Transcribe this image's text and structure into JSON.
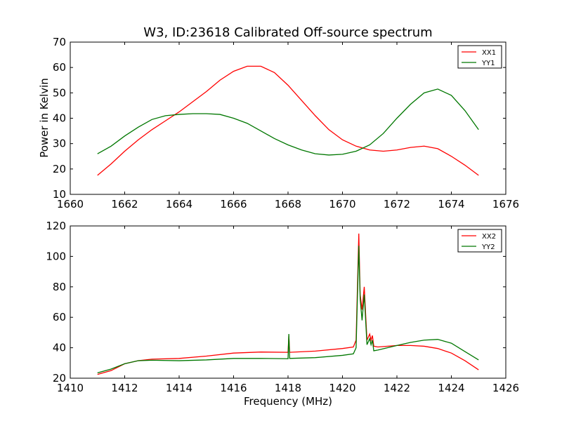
{
  "chart_data": [
    {
      "type": "line",
      "title": "W3, ID:23618 Calibrated Off-source spectrum",
      "xlabel": "",
      "ylabel": "Power in Kelvin",
      "xlim": [
        1660,
        1676
      ],
      "ylim": [
        10,
        70
      ],
      "xticks": [
        "1660",
        "1662",
        "1664",
        "1666",
        "1668",
        "1670",
        "1672",
        "1674",
        "1676"
      ],
      "yticks": [
        "10",
        "20",
        "30",
        "40",
        "50",
        "60",
        "70"
      ],
      "legend": "top-right",
      "series": [
        {
          "name": "XX1",
          "color": "#ff0000",
          "x": [
            1661.0,
            1661.5,
            1662.0,
            1662.5,
            1663.0,
            1663.5,
            1664.0,
            1664.5,
            1665.0,
            1665.5,
            1666.0,
            1666.5,
            1667.0,
            1667.5,
            1668.0,
            1668.5,
            1669.0,
            1669.5,
            1670.0,
            1670.5,
            1671.0,
            1671.5,
            1672.0,
            1672.5,
            1673.0,
            1673.5,
            1674.0,
            1674.5,
            1675.0
          ],
          "y": [
            17.5,
            22.0,
            27.0,
            31.5,
            35.5,
            39.0,
            42.5,
            46.5,
            50.5,
            55.0,
            58.5,
            60.5,
            60.5,
            58.0,
            53.0,
            47.0,
            41.0,
            35.5,
            31.5,
            29.0,
            27.5,
            27.0,
            27.5,
            28.5,
            29.0,
            28.0,
            25.0,
            21.5,
            17.5
          ]
        },
        {
          "name": "YY1",
          "color": "#007700",
          "x": [
            1661.0,
            1661.5,
            1662.0,
            1662.5,
            1663.0,
            1663.5,
            1664.0,
            1664.5,
            1665.0,
            1665.5,
            1666.0,
            1666.5,
            1667.0,
            1667.5,
            1668.0,
            1668.5,
            1669.0,
            1669.5,
            1670.0,
            1670.5,
            1671.0,
            1671.5,
            1672.0,
            1672.5,
            1673.0,
            1673.5,
            1674.0,
            1674.5,
            1675.0
          ],
          "y": [
            26.0,
            29.0,
            33.0,
            36.5,
            39.5,
            41.0,
            41.5,
            41.8,
            41.8,
            41.5,
            40.0,
            38.0,
            35.0,
            32.0,
            29.5,
            27.5,
            26.0,
            25.5,
            25.8,
            27.0,
            29.5,
            34.0,
            40.0,
            45.5,
            50.0,
            51.5,
            49.0,
            43.0,
            35.5
          ]
        }
      ]
    },
    {
      "type": "line",
      "title": "",
      "xlabel": "Frequency (MHz)",
      "ylabel": "",
      "xlim": [
        1410,
        1426
      ],
      "ylim": [
        20,
        120
      ],
      "xticks": [
        "1410",
        "1412",
        "1414",
        "1416",
        "1418",
        "1420",
        "1422",
        "1424",
        "1426"
      ],
      "yticks": [
        "20",
        "40",
        "60",
        "80",
        "100",
        "120"
      ],
      "legend": "top-right",
      "series": [
        {
          "name": "XX2",
          "color": "#ff0000",
          "x": [
            1411.0,
            1411.5,
            1412.0,
            1412.5,
            1413.0,
            1414.0,
            1415.0,
            1416.0,
            1417.0,
            1418.0,
            1418.03,
            1418.06,
            1419.0,
            1420.0,
            1420.4,
            1420.5,
            1420.6,
            1420.65,
            1420.72,
            1420.8,
            1420.9,
            1421.0,
            1421.05,
            1421.1,
            1421.15,
            1421.3,
            1422.0,
            1422.5,
            1423.0,
            1423.5,
            1424.0,
            1424.5,
            1425.0
          ],
          "y": [
            22.5,
            25.0,
            29.5,
            31.5,
            32.5,
            33.0,
            34.5,
            36.5,
            37.2,
            37.0,
            48.0,
            37.0,
            37.8,
            39.5,
            40.5,
            45.0,
            115.0,
            75.0,
            65.0,
            80.0,
            45.0,
            49.0,
            45.0,
            48.0,
            41.0,
            40.5,
            41.5,
            41.5,
            41.0,
            39.5,
            36.5,
            31.5,
            25.5
          ]
        },
        {
          "name": "YY2",
          "color": "#007700",
          "x": [
            1411.0,
            1411.5,
            1412.0,
            1412.5,
            1413.0,
            1414.0,
            1415.0,
            1416.0,
            1417.0,
            1418.0,
            1418.03,
            1418.06,
            1419.0,
            1420.0,
            1420.4,
            1420.5,
            1420.6,
            1420.65,
            1420.72,
            1420.8,
            1420.9,
            1421.0,
            1421.05,
            1421.1,
            1421.15,
            1421.3,
            1422.0,
            1422.5,
            1423.0,
            1423.5,
            1424.0,
            1424.5,
            1425.0
          ],
          "y": [
            23.5,
            26.0,
            29.5,
            31.5,
            31.8,
            31.5,
            32.0,
            33.0,
            33.0,
            32.8,
            49.0,
            33.0,
            33.5,
            35.0,
            36.0,
            40.0,
            107.0,
            72.0,
            58.0,
            75.0,
            42.0,
            46.0,
            42.0,
            45.0,
            38.0,
            38.5,
            41.5,
            43.5,
            45.0,
            45.5,
            43.0,
            37.5,
            32.0
          ]
        }
      ]
    }
  ]
}
